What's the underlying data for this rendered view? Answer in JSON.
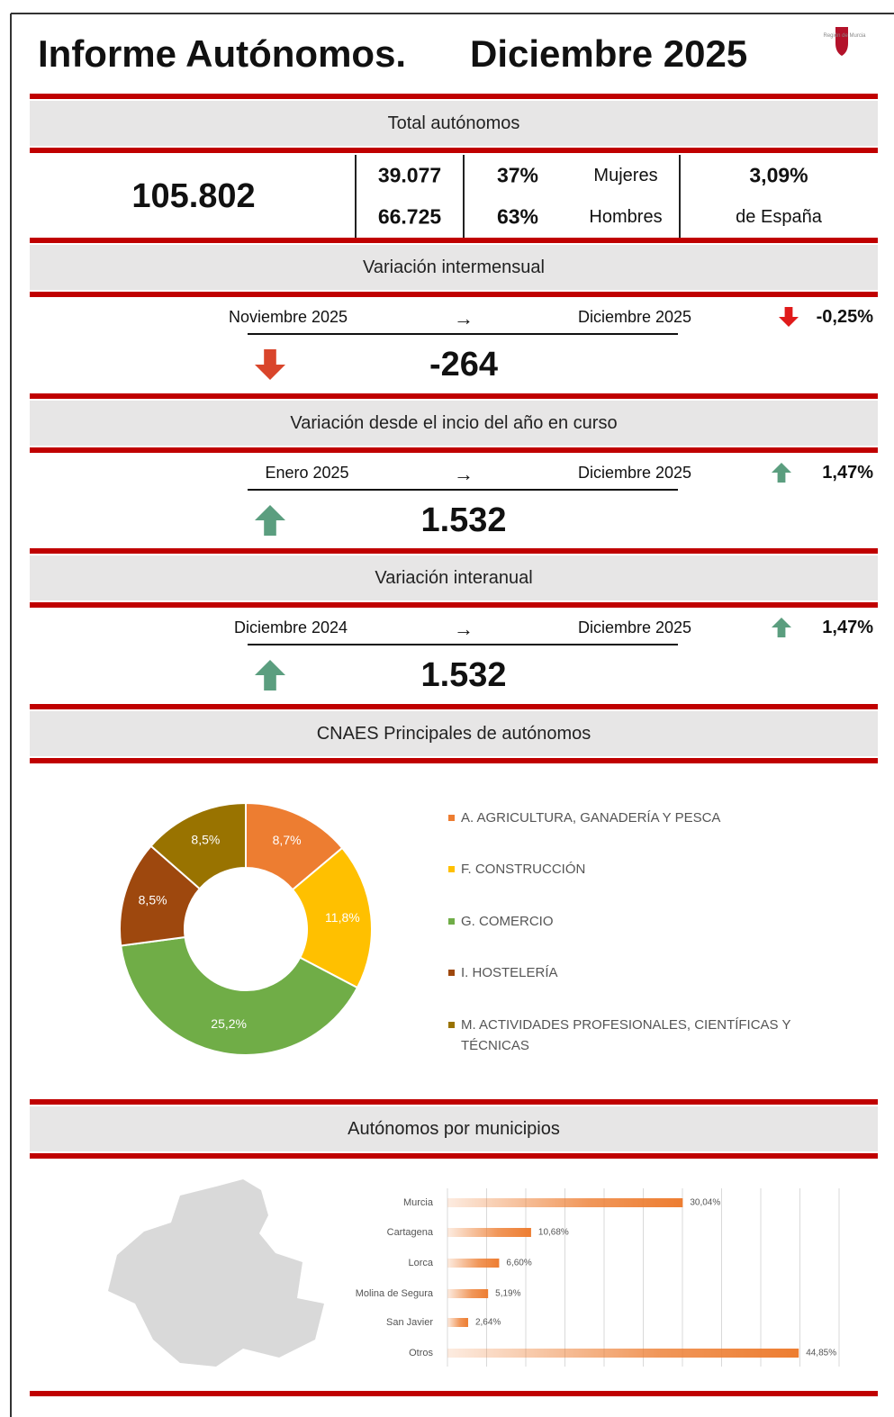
{
  "header": {
    "title_left": "Informe Autónomos.",
    "title_right": "Diciembre 2025",
    "logo": "Región de Murcia"
  },
  "total": {
    "heading": "Total autónomos",
    "total": "105.802",
    "women": "39.077",
    "men": "66.725",
    "women_pct": "37%",
    "men_pct": "63%",
    "women_label": "Mujeres",
    "men_label": "Hombres",
    "spain_pct": "3,09%",
    "spain_label": "de España"
  },
  "variations": [
    {
      "heading": "Variación intermensual",
      "from": "Noviembre 2025",
      "arrow": "→",
      "to": "Diciembre 2025",
      "pct": "-0,25%",
      "value": "-264",
      "direction": "down"
    },
    {
      "heading": "Variación desde el incio del año en curso",
      "from": "Enero 2025",
      "arrow": "→",
      "to": "Diciembre 2025",
      "pct": "1,47%",
      "value": "1.532",
      "direction": "up"
    },
    {
      "heading": "Variación interanual",
      "from": "Diciembre 2024",
      "arrow": "→",
      "to": "Diciembre 2025",
      "pct": "1,47%",
      "value": "1.532",
      "direction": "up"
    }
  ],
  "cnae": {
    "heading": "CNAES Principales de autónomos"
  },
  "municipios": {
    "heading": "Autónomos por municipios"
  },
  "chart_data": [
    {
      "type": "pie",
      "categories": [
        "A. AGRICULTURA, GANADERÍA Y PESCA",
        "F. CONSTRUCCIÓN",
        "G. COMERCIO",
        "I. HOSTELERÍA",
        "M. ACTIVIDADES PROFESIONALES, CIENTÍFICAS Y TÉCNICAS"
      ],
      "values": [
        8.7,
        11.8,
        25.2,
        8.5,
        8.5
      ],
      "value_labels": [
        "8,7%",
        "11,8%",
        "25,2%",
        "8,5%",
        "8,5%"
      ],
      "colors": [
        "#ed7d31",
        "#ffc000",
        "#70ad47",
        "#9e480e",
        "#997300"
      ]
    },
    {
      "type": "bar",
      "orientation": "horizontal",
      "categories": [
        "Murcia",
        "Cartagena",
        "Lorca",
        "Molina de Segura",
        "San Javier",
        "Otros"
      ],
      "values": [
        30.04,
        10.68,
        6.6,
        5.19,
        2.64,
        44.85
      ],
      "value_labels": [
        "30,04%",
        "10,68%",
        "6,60%",
        "5,19%",
        "2,64%",
        "44,85%"
      ],
      "color": "#ed7d31",
      "xlim": [
        0,
        50
      ],
      "xticks": [
        0,
        5,
        10,
        15,
        20,
        25,
        30,
        35,
        40,
        45,
        50
      ],
      "grid": true
    }
  ]
}
